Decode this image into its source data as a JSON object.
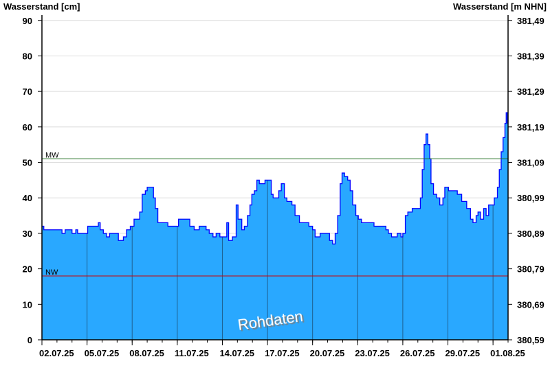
{
  "chart_data": {
    "type": "area",
    "ylabel_left": "Wasserstand [cm]",
    "ylabel_right": "Wasserstand [m NHN]",
    "ylim": [
      0,
      91.5
    ],
    "yticks_left": [
      "0",
      "10",
      "20",
      "30",
      "40",
      "50",
      "60",
      "70",
      "80",
      "90"
    ],
    "yticks_right": [
      "380,59",
      "380,69",
      "380,79",
      "380,89",
      "380,99",
      "381,09",
      "381,19",
      "381,29",
      "381,39",
      "381,49"
    ],
    "xlim": [
      "2025-07-02 00:00",
      "2025-08-02 00:00"
    ],
    "xticks": [
      {
        "date": "2025-07-02",
        "label": "02.07.25"
      },
      {
        "date": "2025-07-05",
        "label": "05.07.25"
      },
      {
        "date": "2025-07-08",
        "label": "08.07.25"
      },
      {
        "date": "2025-07-11",
        "label": "11.07.25"
      },
      {
        "date": "2025-07-14",
        "label": "14.07.25"
      },
      {
        "date": "2025-07-17",
        "label": "17.07.25"
      },
      {
        "date": "2025-07-20",
        "label": "20.07.25"
      },
      {
        "date": "2025-07-23",
        "label": "23.07.25"
      },
      {
        "date": "2025-07-26",
        "label": "26.07.25"
      },
      {
        "date": "2025-07-29",
        "label": "29.07.25"
      },
      {
        "date": "2025-08-01",
        "label": "01.08.25"
      }
    ],
    "grid": true,
    "reference_lines": [
      {
        "label": "MW",
        "value": 51,
        "color": "#1a6b1a"
      },
      {
        "label": "NW",
        "value": 18,
        "color": "#d00000"
      }
    ],
    "fill_color": "#29a8ff",
    "line_color": "#0000ff",
    "watermark": "Rohdaten",
    "x": [
      "2025-07-02 00:00",
      "2025-07-02 03:00",
      "2025-07-03 02:00",
      "2025-07-03 08:00",
      "2025-07-03 13:00",
      "2025-07-03 19:00",
      "2025-07-04 00:00",
      "2025-07-04 06:00",
      "2025-07-04 09:00",
      "2025-07-04 22:00",
      "2025-07-05 01:00",
      "2025-07-05 15:00",
      "2025-07-05 18:00",
      "2025-07-05 21:00",
      "2025-07-06 02:00",
      "2025-07-06 07:00",
      "2025-07-06 12:00",
      "2025-07-06 21:00",
      "2025-07-07 02:00",
      "2025-07-07 10:00",
      "2025-07-07 15:00",
      "2025-07-07 21:00",
      "2025-07-08 03:00",
      "2025-07-08 08:00",
      "2025-07-08 12:00",
      "2025-07-08 16:00",
      "2025-07-08 21:00",
      "2025-07-09 00:00",
      "2025-07-09 06:00",
      "2025-07-09 10:00",
      "2025-07-09 13:00",
      "2025-07-09 17:00",
      "2025-07-10 04:00",
      "2025-07-10 09:00",
      "2025-07-10 22:00",
      "2025-07-11 02:00",
      "2025-07-11 13:00",
      "2025-07-11 20:00",
      "2025-07-12 03:00",
      "2025-07-12 11:00",
      "2025-07-12 22:00",
      "2025-07-13 03:00",
      "2025-07-13 09:00",
      "2025-07-13 14:00",
      "2025-07-13 20:00",
      "2025-07-14 01:00",
      "2025-07-14 07:00",
      "2025-07-14 10:00",
      "2025-07-14 16:00",
      "2025-07-14 19:00",
      "2025-07-14 22:00",
      "2025-07-15 01:00",
      "2025-07-15 07:00",
      "2025-07-15 11:00",
      "2025-07-15 16:00",
      "2025-07-15 20:00",
      "2025-07-15 23:00",
      "2025-07-16 03:00",
      "2025-07-16 07:00",
      "2025-07-16 11:00",
      "2025-07-16 16:00",
      "2025-07-16 20:00",
      "2025-07-17 03:00",
      "2025-07-17 06:00",
      "2025-07-17 09:00",
      "2025-07-17 14:00",
      "2025-07-17 18:00",
      "2025-07-17 22:00",
      "2025-07-18 03:00",
      "2025-07-18 07:00",
      "2025-07-18 15:00",
      "2025-07-18 20:00",
      "2025-07-19 03:00",
      "2025-07-19 12:00",
      "2025-07-19 18:00",
      "2025-07-20 00:00",
      "2025-07-20 04:00",
      "2025-07-20 12:00",
      "2025-07-20 21:00",
      "2025-07-21 03:00",
      "2025-07-21 08:00",
      "2025-07-21 12:00",
      "2025-07-21 16:00",
      "2025-07-21 20:00",
      "2025-07-21 23:00",
      "2025-07-22 03:00",
      "2025-07-22 08:00",
      "2025-07-22 12:00",
      "2025-07-22 16:00",
      "2025-07-22 21:00",
      "2025-07-23 01:00",
      "2025-07-23 06:00",
      "2025-07-23 15:00",
      "2025-07-24 02:00",
      "2025-07-24 14:00",
      "2025-07-24 21:00",
      "2025-07-25 01:00",
      "2025-07-25 06:00",
      "2025-07-25 15:00",
      "2025-07-25 21:00",
      "2025-07-26 00:00",
      "2025-07-26 04:00",
      "2025-07-26 08:00",
      "2025-07-26 15:00",
      "2025-07-26 22:00",
      "2025-07-27 04:00",
      "2025-07-27 07:00",
      "2025-07-27 10:00",
      "2025-07-27 13:00",
      "2025-07-27 16:00",
      "2025-07-27 19:00",
      "2025-07-27 21:00",
      "2025-07-28 01:00",
      "2025-07-28 06:00",
      "2025-07-28 11:00",
      "2025-07-28 16:00",
      "2025-07-28 19:00",
      "2025-07-29 01:00",
      "2025-07-29 08:00",
      "2025-07-29 15:00",
      "2025-07-29 22:00",
      "2025-07-30 06:00",
      "2025-07-30 12:00",
      "2025-07-30 16:00",
      "2025-07-30 21:00",
      "2025-07-31 00:00",
      "2025-07-31 04:00",
      "2025-07-31 09:00",
      "2025-07-31 13:00",
      "2025-07-31 17:00",
      "2025-07-31 22:00",
      "2025-08-01 02:00",
      "2025-08-01 07:00",
      "2025-08-01 10:00",
      "2025-08-01 13:00",
      "2025-08-01 16:00",
      "2025-08-01 19:00",
      "2025-08-01 21:00",
      "2025-08-01 23:00"
    ],
    "values": [
      32,
      31,
      31,
      30,
      31,
      31,
      30,
      31,
      30,
      30,
      32,
      32,
      33,
      31,
      30,
      29,
      30,
      30,
      28,
      29,
      31,
      32,
      34,
      34,
      36,
      41,
      42,
      43,
      43,
      40,
      37,
      33,
      33,
      32,
      32,
      34,
      34,
      32,
      31,
      32,
      31,
      30,
      29,
      30,
      29,
      29,
      33,
      28,
      29,
      29,
      38,
      34,
      31,
      32,
      35,
      38,
      41,
      42,
      45,
      44,
      44,
      45,
      45,
      41,
      40,
      40,
      42,
      44,
      40,
      39,
      38,
      35,
      33,
      33,
      32,
      31,
      29,
      30,
      30,
      28,
      27,
      30,
      35,
      44,
      47,
      46,
      45,
      42,
      38,
      35,
      34,
      33,
      33,
      32,
      32,
      31,
      30,
      29,
      30,
      29,
      30,
      35,
      36,
      37,
      37,
      40,
      48,
      55,
      58,
      55,
      51,
      44,
      41,
      40,
      38,
      40,
      43,
      42,
      42,
      41,
      39,
      37,
      34,
      33,
      35,
      36,
      34,
      37,
      35,
      38,
      38,
      40,
      43,
      48,
      53,
      57,
      61,
      64,
      61
    ]
  }
}
